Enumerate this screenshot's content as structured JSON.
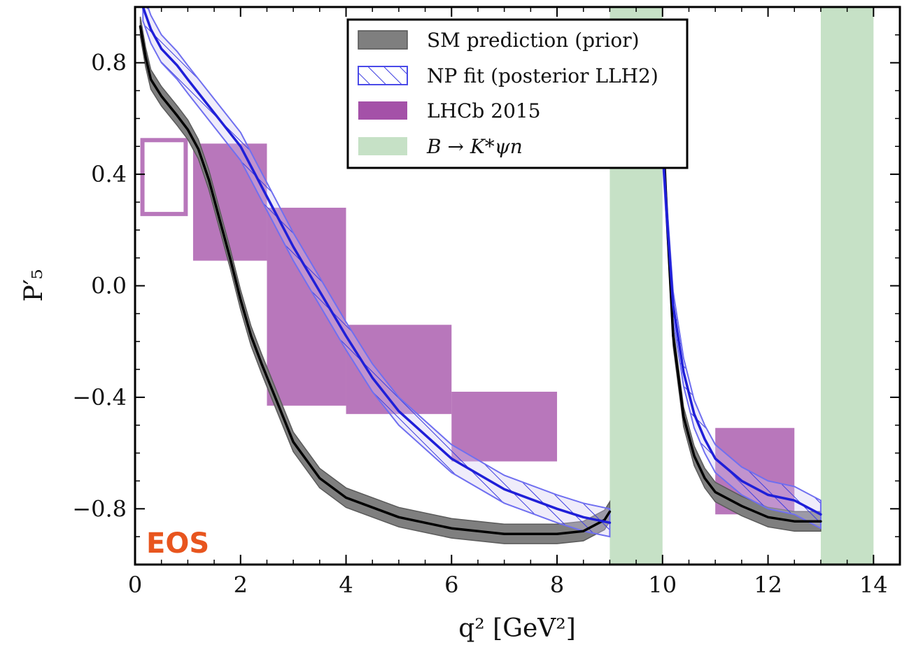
{
  "chart_data": {
    "type": "line",
    "xlabel": "q² [GeV²]",
    "ylabel": "P′₅",
    "xlim": [
      0,
      14.5
    ],
    "ylim": [
      -1.0,
      1.0
    ],
    "x_ticks": [
      0,
      2,
      4,
      6,
      8,
      10,
      12,
      14
    ],
    "x_tick_labels": [
      "0",
      "2",
      "4",
      "6",
      "8",
      "10",
      "12",
      "14"
    ],
    "y_ticks": [
      0.8,
      0.4,
      0.0,
      -0.4,
      -0.8
    ],
    "y_tick_labels": [
      "0.8",
      "0.4",
      "0.0",
      "−0.4",
      "−0.8"
    ],
    "grid": false,
    "legend_position": "top-center",
    "legend": [
      {
        "label": "SM prediction (prior)",
        "style": "gray-band"
      },
      {
        "label": "NP fit (posterior LLH2)",
        "style": "blue-hatched-band"
      },
      {
        "label": "LHCb 2015",
        "style": "purple-box"
      },
      {
        "label": "B → K*ψn",
        "style": "green-band"
      }
    ],
    "watermark": "EOS",
    "colors": {
      "sm_line": "#000000",
      "sm_band": "#7f7f7f",
      "np_line": "#1f1fd8",
      "np_band": "#6f6ff0",
      "lhcb": "#a451a8",
      "psi_band": "#c6e1c6",
      "watermark": "#e8551e"
    },
    "series": [
      {
        "style": "sm",
        "segments": [
          [
            [
              0.1,
              0.93
            ],
            [
              0.2,
              0.82
            ],
            [
              0.3,
              0.74
            ],
            [
              0.5,
              0.68
            ],
            [
              0.8,
              0.61
            ],
            [
              1.0,
              0.56
            ],
            [
              1.2,
              0.49
            ],
            [
              1.4,
              0.38
            ],
            [
              1.6,
              0.24
            ],
            [
              1.8,
              0.1
            ],
            [
              2.0,
              -0.05
            ],
            [
              2.2,
              -0.18
            ],
            [
              2.4,
              -0.28
            ],
            [
              2.7,
              -0.42
            ],
            [
              3.0,
              -0.56
            ],
            [
              3.5,
              -0.69
            ],
            [
              4.0,
              -0.76
            ],
            [
              5.0,
              -0.83
            ],
            [
              6.0,
              -0.87
            ],
            [
              7.0,
              -0.89
            ],
            [
              8.0,
              -0.89
            ],
            [
              8.5,
              -0.88
            ],
            [
              8.9,
              -0.84
            ],
            [
              9.0,
              -0.81
            ]
          ],
          [
            [
              10.0,
              0.6
            ],
            [
              10.1,
              0.18
            ],
            [
              10.2,
              -0.18
            ],
            [
              10.4,
              -0.47
            ],
            [
              10.6,
              -0.61
            ],
            [
              10.8,
              -0.69
            ],
            [
              11.0,
              -0.74
            ],
            [
              11.5,
              -0.79
            ],
            [
              12.0,
              -0.83
            ],
            [
              12.5,
              -0.845
            ],
            [
              13.0,
              -0.845
            ]
          ]
        ],
        "band_halfwidth": 0.035
      },
      {
        "style": "np",
        "segments": [
          [
            [
              0.15,
              1.0
            ],
            [
              0.3,
              0.92
            ],
            [
              0.5,
              0.85
            ],
            [
              0.8,
              0.79
            ],
            [
              1.0,
              0.74
            ],
            [
              1.5,
              0.62
            ],
            [
              2.0,
              0.5
            ],
            [
              2.5,
              0.32
            ],
            [
              3.0,
              0.14
            ],
            [
              3.5,
              -0.02
            ],
            [
              4.0,
              -0.18
            ],
            [
              4.5,
              -0.33
            ],
            [
              5.0,
              -0.45
            ],
            [
              6.0,
              -0.62
            ],
            [
              7.0,
              -0.73
            ],
            [
              8.0,
              -0.8
            ],
            [
              8.5,
              -0.83
            ],
            [
              9.0,
              -0.85
            ]
          ],
          [
            [
              10.0,
              0.5
            ],
            [
              10.1,
              0.2
            ],
            [
              10.2,
              -0.07
            ],
            [
              10.4,
              -0.31
            ],
            [
              10.6,
              -0.46
            ],
            [
              10.8,
              -0.55
            ],
            [
              11.0,
              -0.62
            ],
            [
              11.5,
              -0.7
            ],
            [
              12.0,
              -0.75
            ],
            [
              12.5,
              -0.77
            ],
            [
              13.0,
              -0.82
            ]
          ]
        ],
        "band_halfwidth": 0.05
      }
    ],
    "lhcb_bins": [
      {
        "x": [
          0.1,
          1.0
        ],
        "y": [
          0.25,
          0.53
        ],
        "filled": false
      },
      {
        "x": [
          1.1,
          2.5
        ],
        "y": [
          0.09,
          0.51
        ],
        "filled": true
      },
      {
        "x": [
          2.5,
          4.0
        ],
        "y": [
          -0.43,
          0.28
        ],
        "filled": true
      },
      {
        "x": [
          4.0,
          6.0
        ],
        "y": [
          -0.46,
          -0.14
        ],
        "filled": true
      },
      {
        "x": [
          6.0,
          8.0
        ],
        "y": [
          -0.63,
          -0.38
        ],
        "filled": true
      },
      {
        "x": [
          11.0,
          12.5
        ],
        "y": [
          -0.82,
          -0.51
        ],
        "filled": true
      }
    ],
    "psi_bands": [
      {
        "x": [
          9.0,
          10.0
        ]
      },
      {
        "x": [
          13.0,
          14.0
        ]
      }
    ]
  }
}
